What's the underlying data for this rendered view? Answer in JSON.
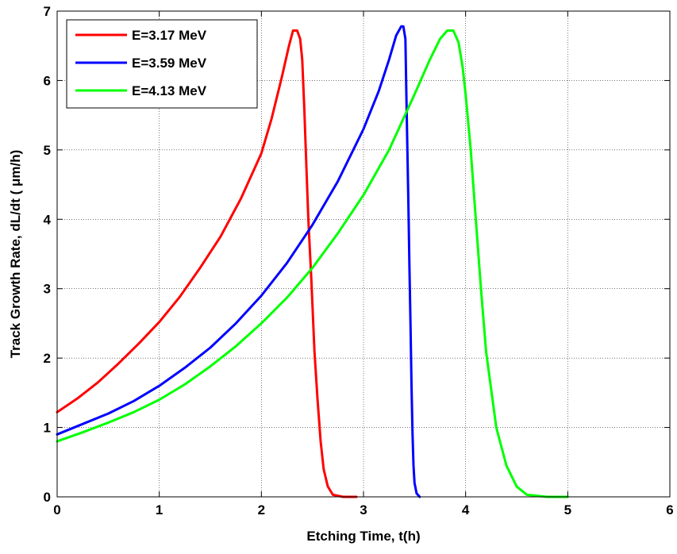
{
  "chart_data": {
    "type": "line",
    "title": "",
    "xlabel": "Etching Time, t(h)",
    "ylabel": "Track Growth Rate, dL/dt ( μm/h)",
    "xlim": [
      0,
      6
    ],
    "ylim": [
      0,
      7
    ],
    "x_ticks": [
      "0",
      "1",
      "2",
      "3",
      "4",
      "5",
      "6"
    ],
    "y_ticks": [
      "0",
      "1",
      "2",
      "3",
      "4",
      "5",
      "6",
      "7"
    ],
    "grid": true,
    "legend_position": "top-left",
    "series": [
      {
        "name": "E=3.17 MeV",
        "color": "#ff0000",
        "x": [
          0,
          0.2,
          0.4,
          0.6,
          0.8,
          1.0,
          1.2,
          1.4,
          1.6,
          1.8,
          2.0,
          2.1,
          2.2,
          2.27,
          2.31,
          2.35,
          2.38,
          2.4,
          2.42,
          2.44,
          2.46,
          2.49,
          2.52,
          2.55,
          2.58,
          2.61,
          2.65,
          2.7,
          2.8,
          2.93
        ],
        "y": [
          1.22,
          1.42,
          1.65,
          1.92,
          2.21,
          2.52,
          2.88,
          3.3,
          3.75,
          4.3,
          4.95,
          5.45,
          6.05,
          6.5,
          6.72,
          6.72,
          6.6,
          6.3,
          5.6,
          4.8,
          4.0,
          3.1,
          2.1,
          1.4,
          0.8,
          0.4,
          0.15,
          0.03,
          0.0,
          0.0
        ]
      },
      {
        "name": "E=3.59 MeV",
        "color": "#0000ff",
        "x": [
          0,
          0.25,
          0.5,
          0.75,
          1.0,
          1.25,
          1.5,
          1.75,
          2.0,
          2.25,
          2.5,
          2.75,
          3.0,
          3.15,
          3.25,
          3.32,
          3.37,
          3.39,
          3.41,
          3.42,
          3.43,
          3.44,
          3.45,
          3.46,
          3.47,
          3.48,
          3.49,
          3.5,
          3.52,
          3.55
        ],
        "y": [
          0.9,
          1.05,
          1.2,
          1.38,
          1.6,
          1.86,
          2.15,
          2.5,
          2.9,
          3.37,
          3.92,
          4.55,
          5.3,
          5.85,
          6.3,
          6.65,
          6.78,
          6.78,
          6.6,
          5.8,
          5.0,
          4.2,
          3.3,
          2.5,
          1.6,
          0.9,
          0.45,
          0.2,
          0.05,
          0.0
        ]
      },
      {
        "name": "E=4.13 MeV",
        "color": "#00ff00",
        "x": [
          0,
          0.25,
          0.5,
          0.75,
          1.0,
          1.25,
          1.5,
          1.75,
          2.0,
          2.25,
          2.5,
          2.75,
          3.0,
          3.25,
          3.5,
          3.65,
          3.75,
          3.82,
          3.88,
          3.93,
          3.97,
          4.0,
          4.05,
          4.1,
          4.15,
          4.2,
          4.3,
          4.4,
          4.5,
          4.6,
          4.8,
          5.0
        ],
        "y": [
          0.8,
          0.93,
          1.07,
          1.22,
          1.4,
          1.62,
          1.88,
          2.17,
          2.5,
          2.87,
          3.3,
          3.8,
          4.35,
          5.0,
          5.8,
          6.3,
          6.6,
          6.72,
          6.72,
          6.55,
          6.2,
          5.8,
          5.0,
          4.0,
          3.0,
          2.1,
          1.0,
          0.45,
          0.15,
          0.03,
          0.0,
          0.0
        ]
      }
    ]
  }
}
